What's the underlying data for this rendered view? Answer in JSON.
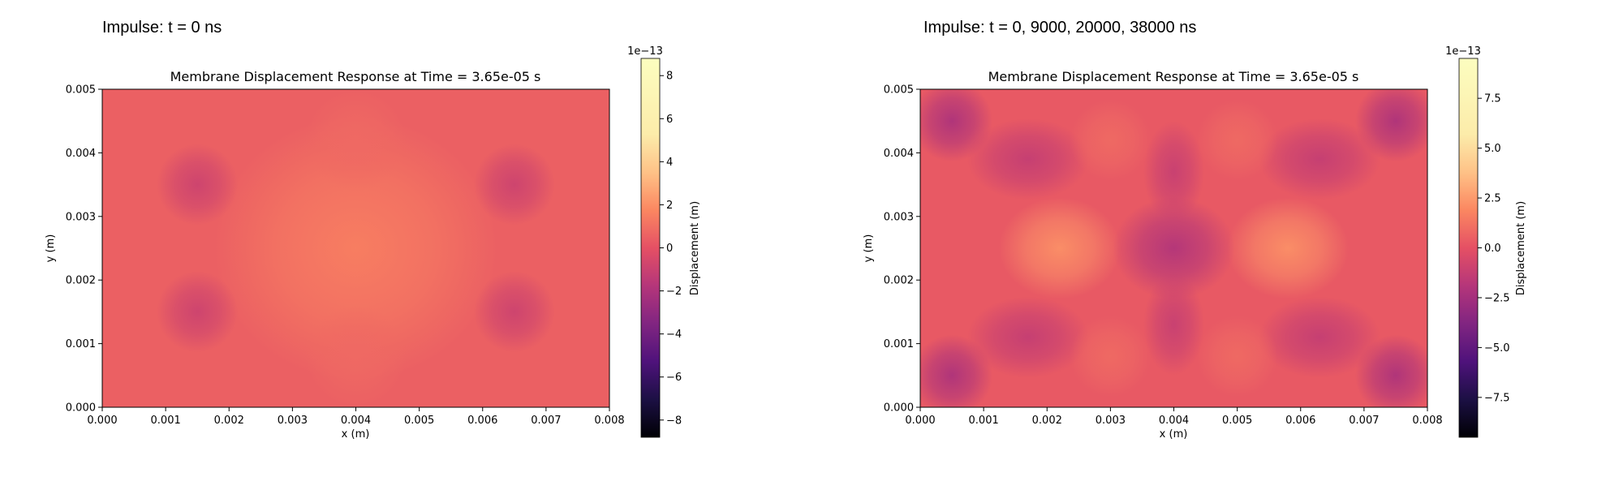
{
  "panels": [
    {
      "heading": "Impulse: t = 0 ns",
      "chart_data": {
        "type": "heatmap",
        "title": "Membrane Displacement Response at Time = 3.65e-05 s",
        "xlabel": "x (m)",
        "ylabel": "y (m)",
        "xlim": [
          0.0,
          0.008
        ],
        "ylim": [
          0.0,
          0.005
        ],
        "xticks": [
          "0.000",
          "0.001",
          "0.002",
          "0.003",
          "0.004",
          "0.005",
          "0.006",
          "0.007",
          "0.008"
        ],
        "yticks": [
          "0.000",
          "0.001",
          "0.002",
          "0.003",
          "0.004",
          "0.005"
        ],
        "colormap": "magma",
        "background_value": 0.5,
        "features": [
          {
            "x": 0.004,
            "y": 0.0025,
            "sx": 0.0014,
            "sy": 0.0013,
            "value": 1.5
          },
          {
            "x": 0.004,
            "y": 0.0042,
            "sx": 0.0005,
            "sy": 0.0005,
            "value": 0.8
          },
          {
            "x": 0.004,
            "y": 0.0008,
            "sx": 0.0005,
            "sy": 0.0005,
            "value": 0.8
          },
          {
            "x": 0.0015,
            "y": 0.0035,
            "sx": 0.0004,
            "sy": 0.0004,
            "value": -0.9
          },
          {
            "x": 0.0015,
            "y": 0.0015,
            "sx": 0.0004,
            "sy": 0.0004,
            "value": -0.9
          },
          {
            "x": 0.0065,
            "y": 0.0035,
            "sx": 0.0004,
            "sy": 0.0004,
            "value": -0.9
          },
          {
            "x": 0.0065,
            "y": 0.0015,
            "sx": 0.0004,
            "sy": 0.0004,
            "value": -0.9
          }
        ],
        "colorbar": {
          "label": "Displacement (m)",
          "scale_label": "1e−13",
          "range": [
            -8.8,
            8.8
          ],
          "ticks": [
            {
              "value": -8,
              "label": "−8"
            },
            {
              "value": -6,
              "label": "−6"
            },
            {
              "value": -4,
              "label": "−4"
            },
            {
              "value": -2,
              "label": "−2"
            },
            {
              "value": 0,
              "label": "0"
            },
            {
              "value": 2,
              "label": "2"
            },
            {
              "value": 4,
              "label": "4"
            },
            {
              "value": 6,
              "label": "6"
            },
            {
              "value": 8,
              "label": "8"
            }
          ]
        }
      }
    },
    {
      "heading": "Impulse: t = 0, 9000, 20000, 38000 ns",
      "chart_data": {
        "type": "heatmap",
        "title": "Membrane Displacement Response at Time = 3.65e-05 s",
        "xlabel": "x (m)",
        "ylabel": "y (m)",
        "xlim": [
          0.0,
          0.008
        ],
        "ylim": [
          0.0,
          0.005
        ],
        "xticks": [
          "0.000",
          "0.001",
          "0.002",
          "0.003",
          "0.004",
          "0.005",
          "0.006",
          "0.007",
          "0.008"
        ],
        "yticks": [
          "0.000",
          "0.001",
          "0.002",
          "0.003",
          "0.004",
          "0.005"
        ],
        "colormap": "magma",
        "background_value": 0.3,
        "features": [
          {
            "x": 0.0022,
            "y": 0.0025,
            "sx": 0.0006,
            "sy": 0.0005,
            "value": 2.2
          },
          {
            "x": 0.0058,
            "y": 0.0025,
            "sx": 0.0006,
            "sy": 0.0005,
            "value": 2.2
          },
          {
            "x": 0.004,
            "y": 0.0025,
            "sx": 0.0006,
            "sy": 0.0005,
            "value": -2.0
          },
          {
            "x": 0.004,
            "y": 0.0037,
            "sx": 0.0003,
            "sy": 0.0005,
            "value": -1.2
          },
          {
            "x": 0.004,
            "y": 0.0013,
            "sx": 0.0003,
            "sy": 0.0005,
            "value": -1.2
          },
          {
            "x": 0.0005,
            "y": 0.0045,
            "sx": 0.0004,
            "sy": 0.0004,
            "value": -2.2
          },
          {
            "x": 0.0005,
            "y": 0.0005,
            "sx": 0.0004,
            "sy": 0.0004,
            "value": -2.2
          },
          {
            "x": 0.0075,
            "y": 0.0045,
            "sx": 0.0004,
            "sy": 0.0004,
            "value": -2.2
          },
          {
            "x": 0.0075,
            "y": 0.0005,
            "sx": 0.0004,
            "sy": 0.0004,
            "value": -2.2
          },
          {
            "x": 0.0017,
            "y": 0.0039,
            "sx": 0.0006,
            "sy": 0.0004,
            "value": -1.3
          },
          {
            "x": 0.0063,
            "y": 0.0039,
            "sx": 0.0006,
            "sy": 0.0004,
            "value": -1.3
          },
          {
            "x": 0.0017,
            "y": 0.0011,
            "sx": 0.0006,
            "sy": 0.0004,
            "value": -1.3
          },
          {
            "x": 0.0063,
            "y": 0.0011,
            "sx": 0.0006,
            "sy": 0.0004,
            "value": -1.3
          },
          {
            "x": 0.003,
            "y": 0.0042,
            "sx": 0.0004,
            "sy": 0.0004,
            "value": 0.9
          },
          {
            "x": 0.005,
            "y": 0.0042,
            "sx": 0.0004,
            "sy": 0.0004,
            "value": 0.9
          },
          {
            "x": 0.003,
            "y": 0.0008,
            "sx": 0.0004,
            "sy": 0.0004,
            "value": 0.9
          },
          {
            "x": 0.005,
            "y": 0.0008,
            "sx": 0.0004,
            "sy": 0.0004,
            "value": 0.9
          }
        ],
        "colorbar": {
          "label": "Displacement (m)",
          "scale_label": "1e−13",
          "range": [
            -9.5,
            9.5
          ],
          "ticks": [
            {
              "value": -7.5,
              "label": "−7.5"
            },
            {
              "value": -5.0,
              "label": "−5.0"
            },
            {
              "value": -2.5,
              "label": "−2.5"
            },
            {
              "value": 0.0,
              "label": "0.0"
            },
            {
              "value": 2.5,
              "label": "2.5"
            },
            {
              "value": 5.0,
              "label": "5.0"
            },
            {
              "value": 7.5,
              "label": "7.5"
            }
          ]
        }
      }
    }
  ]
}
